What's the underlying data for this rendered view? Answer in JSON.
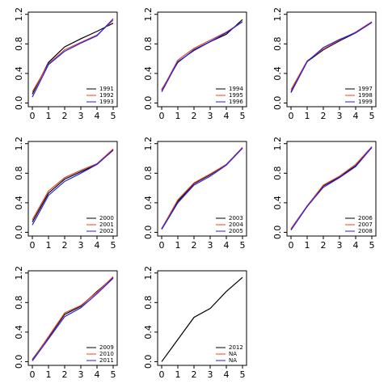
{
  "chart_data": [
    {
      "type": "line",
      "x": [
        0,
        1,
        2,
        3,
        4,
        5
      ],
      "xlim": [
        -0.25,
        5.25
      ],
      "xticks": [
        0,
        1,
        2,
        3,
        4,
        5
      ],
      "ylim": [
        -0.05,
        1.23
      ],
      "yticks": [
        {
          "value": 0,
          "label": "0.0"
        },
        0.4,
        0.8,
        1.2
      ],
      "legend": "bottomright",
      "series": [
        {
          "name": "1991",
          "color": "#000000",
          "values": [
            0.12,
            0.55,
            0.76,
            0.87,
            0.97,
            1.08
          ]
        },
        {
          "name": "1992",
          "color": "#e0452b",
          "values": [
            0.15,
            0.53,
            0.72,
            0.82,
            0.92,
            1.12
          ]
        },
        {
          "name": "1993",
          "color": "#2020e8",
          "values": [
            0.08,
            0.52,
            0.7,
            0.81,
            0.91,
            1.14
          ]
        }
      ]
    },
    {
      "type": "line",
      "x": [
        0,
        1,
        2,
        3,
        4,
        5
      ],
      "xlim": [
        -0.25,
        5.25
      ],
      "xticks": [
        0,
        1,
        2,
        3,
        4,
        5
      ],
      "ylim": [
        -0.05,
        1.23
      ],
      "yticks": [
        {
          "value": 0,
          "label": "0.0"
        },
        0.4,
        0.8,
        1.2
      ],
      "legend": "bottomright",
      "series": [
        {
          "name": "1994",
          "color": "#000000",
          "values": [
            0.18,
            0.55,
            0.72,
            0.83,
            0.93,
            1.13
          ]
        },
        {
          "name": "1995",
          "color": "#e0452b",
          "values": [
            0.17,
            0.58,
            0.74,
            0.85,
            0.96,
            1.1
          ]
        },
        {
          "name": "1996",
          "color": "#2020e8",
          "values": [
            0.15,
            0.56,
            0.71,
            0.83,
            0.95,
            1.1
          ]
        }
      ]
    },
    {
      "type": "line",
      "x": [
        0,
        1,
        2,
        3,
        4,
        5
      ],
      "xlim": [
        -0.25,
        5.25
      ],
      "xticks": [
        0,
        1,
        2,
        3,
        4,
        5
      ],
      "ylim": [
        -0.05,
        1.23
      ],
      "yticks": [
        {
          "value": 0,
          "label": "0.0"
        },
        0.4,
        0.8,
        1.2
      ],
      "legend": "bottomright",
      "series": [
        {
          "name": "1997",
          "color": "#000000",
          "values": [
            0.15,
            0.56,
            0.72,
            0.84,
            0.95,
            1.09
          ]
        },
        {
          "name": "1998",
          "color": "#e0452b",
          "values": [
            0.18,
            0.57,
            0.73,
            0.85,
            0.96,
            1.1
          ]
        },
        {
          "name": "1999",
          "color": "#2020e8",
          "values": [
            0.14,
            0.56,
            0.75,
            0.86,
            0.95,
            1.09
          ]
        }
      ]
    },
    {
      "type": "line",
      "x": [
        0,
        1,
        2,
        3,
        4,
        5
      ],
      "xlim": [
        -0.25,
        5.25
      ],
      "xticks": [
        0,
        1,
        2,
        3,
        4,
        5
      ],
      "ylim": [
        -0.05,
        1.23
      ],
      "yticks": [
        {
          "value": 0,
          "label": "0.0"
        },
        0.4,
        0.8,
        1.2
      ],
      "legend": "bottomright",
      "series": [
        {
          "name": "2000",
          "color": "#000000",
          "values": [
            0.14,
            0.53,
            0.72,
            0.82,
            0.92,
            1.12
          ]
        },
        {
          "name": "2001",
          "color": "#e0452b",
          "values": [
            0.17,
            0.56,
            0.74,
            0.84,
            0.93,
            1.13
          ]
        },
        {
          "name": "2002",
          "color": "#2020e8",
          "values": [
            0.1,
            0.5,
            0.69,
            0.8,
            0.92,
            1.11
          ]
        }
      ]
    },
    {
      "type": "line",
      "x": [
        0,
        1,
        2,
        3,
        4,
        5
      ],
      "xlim": [
        -0.25,
        5.25
      ],
      "xticks": [
        0,
        1,
        2,
        3,
        4,
        5
      ],
      "ylim": [
        -0.05,
        1.23
      ],
      "yticks": [
        {
          "value": 0,
          "label": "0.0"
        },
        0.4,
        0.8,
        1.2
      ],
      "legend": "bottomright",
      "series": [
        {
          "name": "2003",
          "color": "#000000",
          "values": [
            0.05,
            0.42,
            0.66,
            0.78,
            0.92,
            1.14
          ]
        },
        {
          "name": "2004",
          "color": "#e0452b",
          "values": [
            0.05,
            0.44,
            0.67,
            0.79,
            0.92,
            1.15
          ]
        },
        {
          "name": "2005",
          "color": "#2020e8",
          "values": [
            0.04,
            0.4,
            0.64,
            0.76,
            0.91,
            1.14
          ]
        }
      ]
    },
    {
      "type": "line",
      "x": [
        0,
        1,
        2,
        3,
        4,
        5
      ],
      "xlim": [
        -0.25,
        5.25
      ],
      "xticks": [
        0,
        1,
        2,
        3,
        4,
        5
      ],
      "ylim": [
        -0.05,
        1.23
      ],
      "yticks": [
        {
          "value": 0,
          "label": "0.0"
        },
        0.4,
        0.8,
        1.2
      ],
      "legend": "bottomright",
      "series": [
        {
          "name": "2006",
          "color": "#000000",
          "values": [
            0.04,
            0.35,
            0.63,
            0.75,
            0.9,
            1.15
          ]
        },
        {
          "name": "2007",
          "color": "#e0452b",
          "values": [
            0.05,
            0.36,
            0.64,
            0.76,
            0.92,
            1.16
          ]
        },
        {
          "name": "2008",
          "color": "#2020e8",
          "values": [
            0.03,
            0.35,
            0.61,
            0.74,
            0.89,
            1.15
          ]
        }
      ]
    },
    {
      "type": "line",
      "x": [
        0,
        1,
        2,
        3,
        4,
        5
      ],
      "xlim": [
        -0.25,
        5.25
      ],
      "xticks": [
        0,
        1,
        2,
        3,
        4,
        5
      ],
      "ylim": [
        -0.05,
        1.23
      ],
      "yticks": [
        {
          "value": 0,
          "label": "0.0"
        },
        0.4,
        0.8,
        1.2
      ],
      "legend": "bottomright",
      "series": [
        {
          "name": "2009",
          "color": "#000000",
          "values": [
            0.03,
            0.33,
            0.64,
            0.75,
            0.95,
            1.14
          ]
        },
        {
          "name": "2010",
          "color": "#e0452b",
          "values": [
            0.02,
            0.34,
            0.66,
            0.76,
            0.94,
            1.15
          ]
        },
        {
          "name": "2011",
          "color": "#2020e8",
          "values": [
            0.01,
            0.31,
            0.61,
            0.73,
            0.92,
            1.13
          ]
        }
      ]
    },
    {
      "type": "line",
      "x": [
        0,
        1,
        2,
        3,
        4,
        5
      ],
      "xlim": [
        -0.25,
        5.25
      ],
      "xticks": [
        0,
        1,
        2,
        3,
        4,
        5
      ],
      "ylim": [
        -0.05,
        1.23
      ],
      "yticks": [
        {
          "value": 0,
          "label": "0.0"
        },
        0.4,
        0.8,
        1.2
      ],
      "legend": "bottomright",
      "series": [
        {
          "name": "2012",
          "color": "#000000",
          "values": [
            0.0,
            0.3,
            0.6,
            0.72,
            0.95,
            1.14
          ]
        },
        {
          "name": "NA",
          "color": "#e0452b",
          "values": [
            null,
            null,
            null,
            null,
            null,
            null
          ]
        },
        {
          "name": "NA",
          "color": "#2020e8",
          "values": [
            null,
            null,
            null,
            null,
            null,
            null
          ]
        }
      ]
    }
  ]
}
